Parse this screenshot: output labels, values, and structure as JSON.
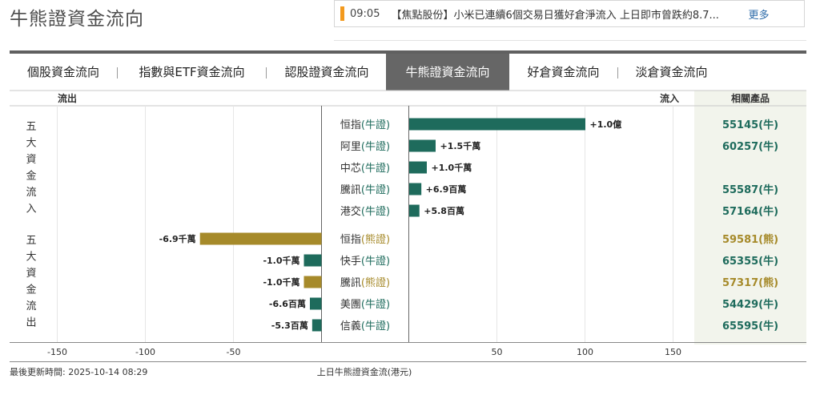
{
  "header": {
    "title": "牛熊證資金流向"
  },
  "ticker": {
    "time": "09:05",
    "text": "【焦點股份】小米已連續6個交易日獲好倉淨流入 上日即市曾跌約8.7...",
    "more": "更多"
  },
  "tabs": [
    {
      "label": "個股資金流向",
      "active": false
    },
    {
      "label": "指數與ETF資金流向",
      "active": false
    },
    {
      "label": "認股證資金流向",
      "active": false
    },
    {
      "label": "牛熊證資金流向",
      "active": true
    },
    {
      "label": "好倉資金流向",
      "active": false
    },
    {
      "label": "淡倉資金流向",
      "active": false
    }
  ],
  "table_header": {
    "outflow": "流出",
    "inflow": "流入",
    "related": "相關產品"
  },
  "groups": [
    {
      "label": "五大資金流入"
    },
    {
      "label": "五大資金流出"
    }
  ],
  "colors": {
    "bull": "#1e6b5c",
    "bear": "#a68a2a",
    "bull_text": "#1e6b5c",
    "bear_text": "#a68a2a",
    "related_bg": "#f2f4ec"
  },
  "chart_data": {
    "type": "bar",
    "xlabel": "上日牛熊證資金流(港元)",
    "xlim": [
      -170,
      170
    ],
    "xticks": [
      -150,
      -100,
      -50,
      50,
      100,
      150
    ],
    "xtick_labels": [
      "-150",
      "-100",
      "-50",
      "50",
      "100",
      "150"
    ],
    "inflow": [
      {
        "name": "恒指",
        "kind": "(牛證)",
        "type": "bull",
        "value": 100,
        "label": "+1.0億",
        "product": "55145(牛)"
      },
      {
        "name": "阿里",
        "kind": "(牛證)",
        "type": "bull",
        "value": 15,
        "label": "+1.5千萬",
        "product": "60257(牛)"
      },
      {
        "name": "中芯",
        "kind": "(牛證)",
        "type": "bull",
        "value": 10,
        "label": "+1.0千萬",
        "product": ""
      },
      {
        "name": "騰訊",
        "kind": "(牛證)",
        "type": "bull",
        "value": 6.9,
        "label": "+6.9百萬",
        "product": "55587(牛)"
      },
      {
        "name": "港交",
        "kind": "(牛證)",
        "type": "bull",
        "value": 5.8,
        "label": "+5.8百萬",
        "product": "57164(牛)"
      }
    ],
    "outflow": [
      {
        "name": "恒指",
        "kind": "(熊證)",
        "type": "bear",
        "value": -69,
        "label": "-6.9千萬",
        "product": "59581(熊)"
      },
      {
        "name": "快手",
        "kind": "(牛證)",
        "type": "bull",
        "value": -10,
        "label": "-1.0千萬",
        "product": "65355(牛)"
      },
      {
        "name": "騰訊",
        "kind": "(熊證)",
        "type": "bear",
        "value": -10,
        "label": "-1.0千萬",
        "product": "57317(熊)"
      },
      {
        "name": "美團",
        "kind": "(牛證)",
        "type": "bull",
        "value": -6.6,
        "label": "-6.6百萬",
        "product": "54429(牛)"
      },
      {
        "name": "信義",
        "kind": "(牛證)",
        "type": "bull",
        "value": -5.3,
        "label": "-5.3百萬",
        "product": "65595(牛)"
      }
    ]
  },
  "footer": {
    "updated": "最後更新時間: 2025-10-14 08:29"
  }
}
